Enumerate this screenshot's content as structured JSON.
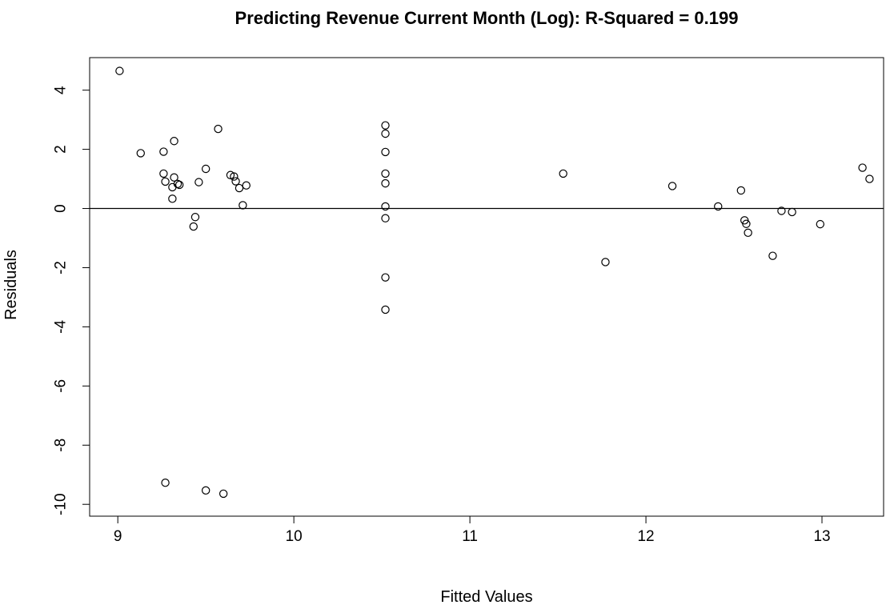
{
  "chart_data": {
    "type": "scatter",
    "title": "Predicting Revenue Current Month (Log): R-Squared = 0.199",
    "xlabel": "Fitted Values",
    "ylabel": "Residuals",
    "xlim": [
      8.84,
      13.35
    ],
    "ylim": [
      -10.4,
      5.1
    ],
    "x_ticks": [
      9,
      10,
      11,
      12,
      13
    ],
    "x_tick_labels": [
      "9",
      "10",
      "11",
      "12",
      "13"
    ],
    "y_ticks": [
      4,
      2,
      0,
      -2,
      -4,
      -6,
      -8,
      -10
    ],
    "y_tick_labels": [
      "4",
      "2",
      "0",
      "-2",
      "-4",
      "-6",
      "-8",
      "-10"
    ],
    "reference_line_y": 0,
    "grid": false,
    "marker": "open-circle",
    "colors": {
      "points": "#000000",
      "axes": "#000000",
      "reference_line": "#000000"
    },
    "points": [
      {
        "x": 9.01,
        "y": 4.65
      },
      {
        "x": 9.13,
        "y": 1.87
      },
      {
        "x": 9.26,
        "y": 1.92
      },
      {
        "x": 9.26,
        "y": 1.18
      },
      {
        "x": 9.27,
        "y": 0.91
      },
      {
        "x": 9.27,
        "y": -9.27
      },
      {
        "x": 9.31,
        "y": 0.72
      },
      {
        "x": 9.31,
        "y": 0.33
      },
      {
        "x": 9.32,
        "y": 2.28
      },
      {
        "x": 9.32,
        "y": 1.05
      },
      {
        "x": 9.34,
        "y": 0.83
      },
      {
        "x": 9.35,
        "y": 0.8
      },
      {
        "x": 9.43,
        "y": -0.61
      },
      {
        "x": 9.44,
        "y": -0.29
      },
      {
        "x": 9.46,
        "y": 0.89
      },
      {
        "x": 9.5,
        "y": 1.34
      },
      {
        "x": 9.5,
        "y": -9.53
      },
      {
        "x": 9.57,
        "y": 2.69
      },
      {
        "x": 9.6,
        "y": -9.64
      },
      {
        "x": 9.64,
        "y": 1.13
      },
      {
        "x": 9.66,
        "y": 1.08
      },
      {
        "x": 9.67,
        "y": 0.92
      },
      {
        "x": 9.69,
        "y": 0.69
      },
      {
        "x": 9.71,
        "y": 0.11
      },
      {
        "x": 9.73,
        "y": 0.78
      },
      {
        "x": 10.52,
        "y": 2.81
      },
      {
        "x": 10.52,
        "y": 2.53
      },
      {
        "x": 10.52,
        "y": 1.91
      },
      {
        "x": 10.52,
        "y": 1.18
      },
      {
        "x": 10.52,
        "y": 0.85
      },
      {
        "x": 10.52,
        "y": 0.07
      },
      {
        "x": 10.52,
        "y": -0.33
      },
      {
        "x": 10.52,
        "y": -2.33
      },
      {
        "x": 10.52,
        "y": -3.42
      },
      {
        "x": 11.53,
        "y": 1.18
      },
      {
        "x": 11.77,
        "y": -1.81
      },
      {
        "x": 12.15,
        "y": 0.76
      },
      {
        "x": 12.41,
        "y": 0.07
      },
      {
        "x": 12.54,
        "y": 0.61
      },
      {
        "x": 12.56,
        "y": -0.4
      },
      {
        "x": 12.57,
        "y": -0.52
      },
      {
        "x": 12.58,
        "y": -0.82
      },
      {
        "x": 12.72,
        "y": -1.6
      },
      {
        "x": 12.77,
        "y": -0.08
      },
      {
        "x": 12.83,
        "y": -0.12
      },
      {
        "x": 12.99,
        "y": -0.53
      },
      {
        "x": 13.23,
        "y": 1.38
      },
      {
        "x": 13.27,
        "y": 1.0
      }
    ]
  }
}
